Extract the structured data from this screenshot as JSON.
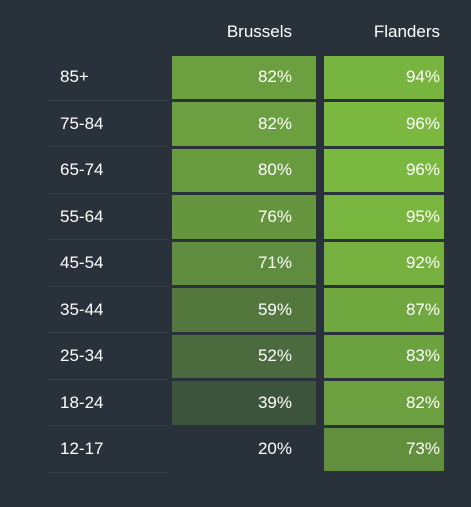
{
  "chart_data": {
    "type": "heatmap",
    "columns": [
      "Brussels",
      "Flanders"
    ],
    "rows": [
      "85+",
      "75-84",
      "65-74",
      "55-64",
      "45-54",
      "35-44",
      "25-34",
      "18-24",
      "12-17"
    ],
    "values": [
      [
        82,
        94
      ],
      [
        82,
        96
      ],
      [
        80,
        96
      ],
      [
        76,
        95
      ],
      [
        71,
        92
      ],
      [
        59,
        87
      ],
      [
        52,
        83
      ],
      [
        39,
        82
      ],
      [
        20,
        73
      ]
    ],
    "labels": [
      [
        "82%",
        "94%"
      ],
      [
        "82%",
        "96%"
      ],
      [
        "80%",
        "96%"
      ],
      [
        "76%",
        "95%"
      ],
      [
        "71%",
        "92%"
      ],
      [
        "59%",
        "87%"
      ],
      [
        "52%",
        "83%"
      ],
      [
        "39%",
        "82%"
      ],
      [
        "20%",
        "73%"
      ]
    ],
    "colorscale": {
      "low": "#29323a",
      "high": "#7ab840",
      "range": [
        20,
        96
      ]
    }
  }
}
